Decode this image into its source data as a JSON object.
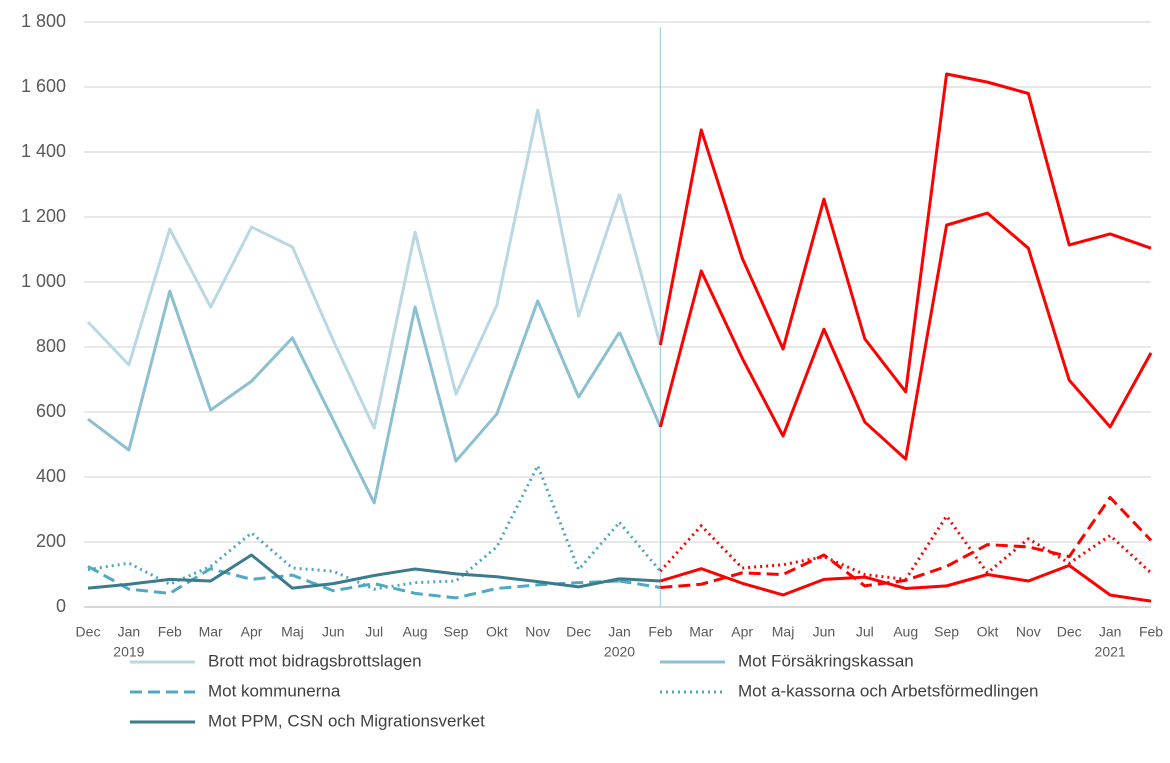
{
  "chart_data": {
    "type": "line",
    "categories": [
      "Dec",
      "Jan",
      "Feb",
      "Mar",
      "Apr",
      "Maj",
      "Jun",
      "Jul",
      "Aug",
      "Sep",
      "Okt",
      "Nov",
      "Dec",
      "Jan",
      "Feb",
      "Mar",
      "Apr",
      "Maj",
      "Jun",
      "Jul",
      "Aug",
      "Sep",
      "Okt",
      "Nov",
      "Dec",
      "Jan",
      "Feb"
    ],
    "x_groups": [
      {
        "label": "2019",
        "at": 1
      },
      {
        "label": "2020",
        "at": 13
      },
      {
        "label": "2021",
        "at": 25
      }
    ],
    "highlight": {
      "from": 14,
      "color": "#ff0000"
    },
    "ylim": [
      0,
      1800
    ],
    "yticks": [
      0,
      200,
      400,
      600,
      800,
      {
        "value": 1000,
        "label": "1 000"
      },
      {
        "value": 1200,
        "label": "1 200"
      },
      {
        "value": 1400,
        "label": "1 400"
      },
      {
        "value": 1600,
        "label": "1 600"
      },
      {
        "value": 1800,
        "label": "1 800"
      }
    ],
    "grid": true,
    "series": [
      {
        "name": "Brott mot bidragsbrottslagen",
        "color": "#b9d8e4",
        "dash": "solid",
        "values": [
          877,
          745,
          1163,
          923,
          1169,
          1108,
          820,
          550,
          1153,
          655,
          929,
          1529,
          895,
          1271,
          806,
          1468,
          1074,
          794,
          1255,
          825,
          662,
          1640,
          1615,
          1580,
          1114,
          1148,
          1104
        ]
      },
      {
        "name": "Mot Försäkringskassan",
        "color": "#8bc0d0",
        "dash": "solid",
        "values": [
          578,
          483,
          972,
          606,
          695,
          828,
          575,
          320,
          923,
          449,
          594,
          942,
          646,
          846,
          554,
          1034,
          766,
          526,
          855,
          569,
          455,
          1175,
          1212,
          1104,
          698,
          554,
          782
        ]
      },
      {
        "name": "Mot kommunerna",
        "color": "#4fa9c5",
        "dash": "dashed",
        "values": [
          125,
          55,
          42,
          118,
          85,
          98,
          50,
          72,
          42,
          28,
          57,
          68,
          75,
          80,
          60,
          70,
          105,
          100,
          160,
          65,
          82,
          125,
          192,
          185,
          155,
          337,
          205
        ]
      },
      {
        "name": "Mot a-kassorna och Arbetsförmedlingen",
        "color": "#4fa6bd",
        "dash": "dotted",
        "values": [
          115,
          135,
          70,
          125,
          228,
          120,
          110,
          55,
          75,
          80,
          185,
          435,
          115,
          260,
          110,
          250,
          120,
          130,
          155,
          100,
          85,
          280,
          105,
          210,
          135,
          220,
          105
        ]
      },
      {
        "name": "Mot PPM, CSN och Migrationsverket",
        "color": "#3b7b8c",
        "dash": "solid",
        "values": [
          58,
          70,
          85,
          80,
          160,
          58,
          72,
          97,
          117,
          102,
          93,
          78,
          62,
          87,
          80,
          118,
          73,
          37,
          85,
          92,
          57,
          65,
          100,
          80,
          128,
          37,
          18
        ]
      }
    ]
  }
}
